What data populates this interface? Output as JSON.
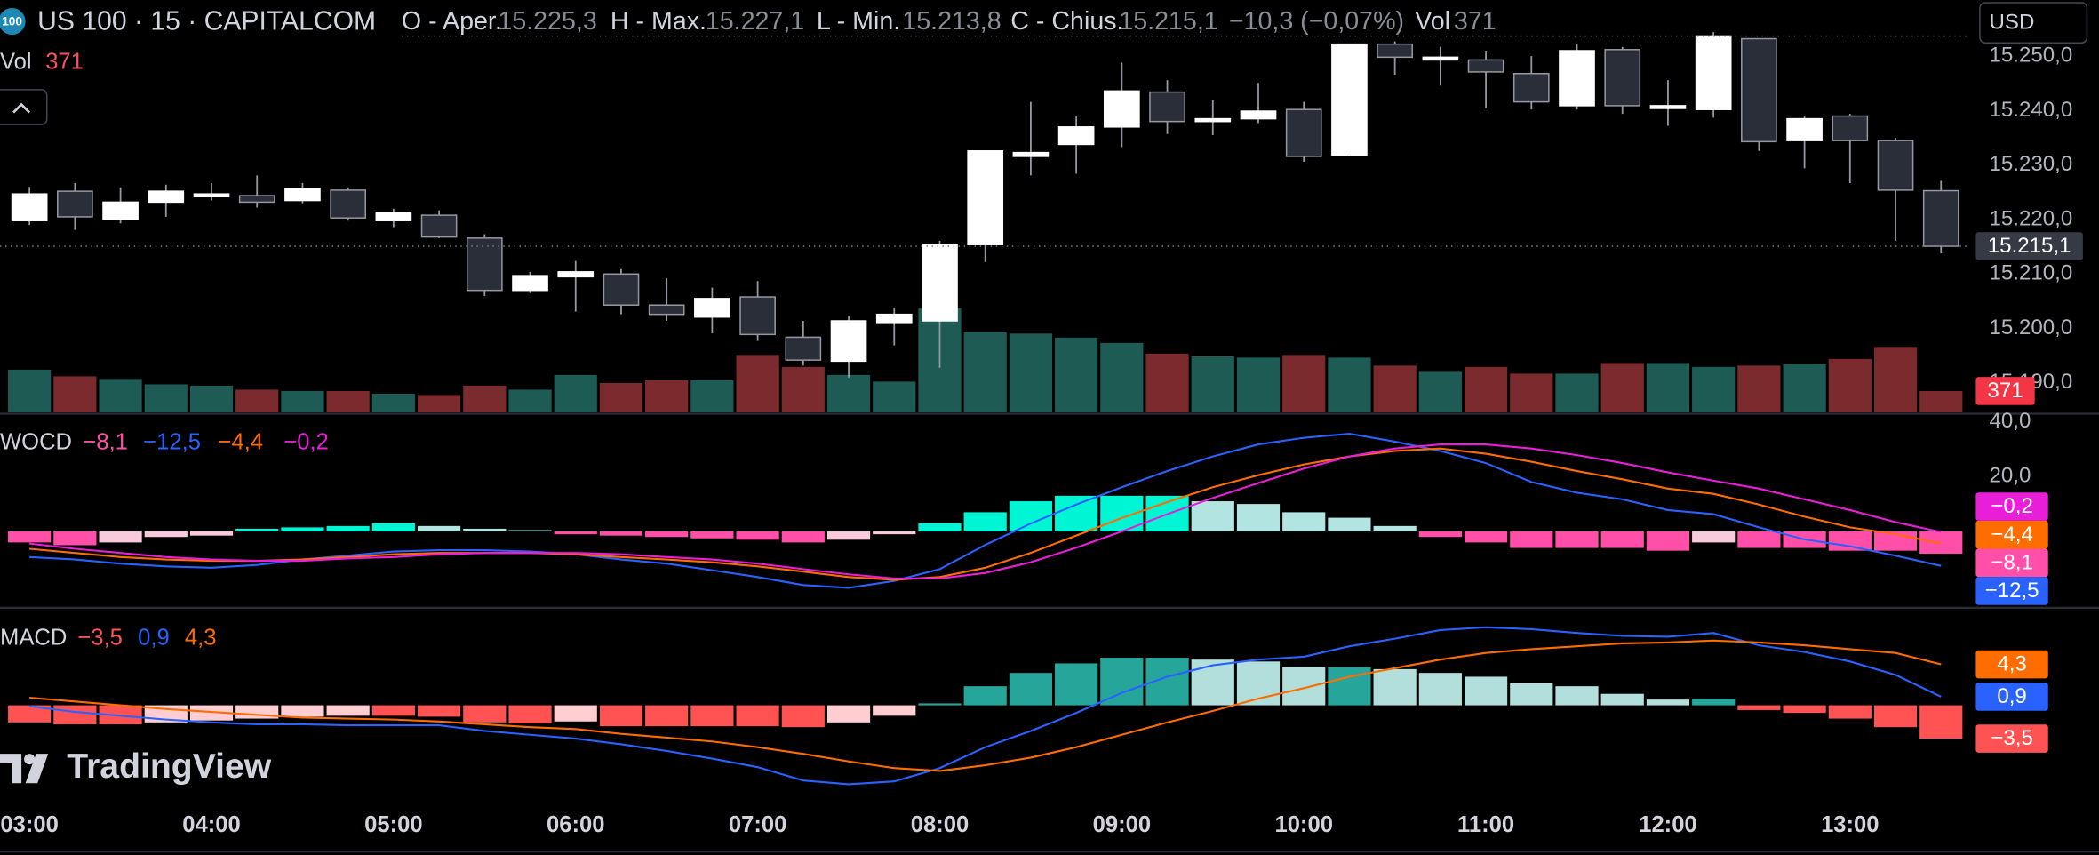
{
  "chart_data": [
    {
      "type": "candlestick",
      "title": "US 100 · 15 · CAPITALCOM",
      "symbol_badge": "100",
      "currency": "USD",
      "legend": {
        "open": "O - Aper.",
        "high": "H - Max.",
        "low": "L - Min.",
        "close": "C - Chius.",
        "change": "−10,3 (−0,07%)",
        "volume": "Vol"
      },
      "last_labels": {
        "open": "15.225,3",
        "high": "15.227,1",
        "low": "15.213,8",
        "close": "15.215,1"
      },
      "categories": [
        "03:00",
        null,
        null,
        null,
        "04:00",
        null,
        null,
        null,
        "05:00",
        null,
        null,
        null,
        "06:00",
        null,
        null,
        null,
        "07:00",
        null,
        null,
        null,
        "08:00",
        null,
        null,
        null,
        "09:00",
        null,
        null,
        null,
        "10:00",
        null,
        null,
        null,
        "11:00",
        null,
        null,
        null,
        "12:00",
        null,
        null,
        null,
        "13:00",
        null,
        null
      ],
      "open": [
        15219.8,
        15225.2,
        15220.0,
        15223.2,
        15224.2,
        15224.4,
        15223.5,
        15225.4,
        15219.8,
        15220.8,
        15216.6,
        15207.0,
        15209.5,
        15210.0,
        15204.3,
        15202.1,
        15205.8,
        15198.4,
        15194.0,
        15201.1,
        15201.4,
        15215.4,
        15231.6,
        15233.8,
        15237.0,
        15243.4,
        15238.0,
        15238.5,
        15240.2,
        15231.8,
        15252.2,
        15249.3,
        15249.3,
        15246.8,
        15240.9,
        15251.2,
        15240.4,
        15240.2,
        15253.2,
        15234.5,
        15239.0,
        15234.5,
        15225.3
      ],
      "high": [
        15226.0,
        15226.7,
        15225.9,
        15226.4,
        15226.7,
        15228.1,
        15226.7,
        15225.9,
        15222.0,
        15221.7,
        15217.3,
        15210.4,
        15212.4,
        15210.9,
        15209.2,
        15207.5,
        15208.7,
        15201.4,
        15202.3,
        15203.8,
        15216.1,
        15232.6,
        15241.6,
        15238.9,
        15248.8,
        15245.6,
        15241.9,
        15245.1,
        15241.6,
        15252.2,
        15252.7,
        15251.7,
        15251.0,
        15250.0,
        15252.2,
        15251.7,
        15245.6,
        15254.4,
        15253.2,
        15238.9,
        15239.4,
        15235.0,
        15227.1
      ],
      "low": [
        15219.0,
        15218.1,
        15219.3,
        15220.5,
        15223.5,
        15222.2,
        15223.0,
        15219.8,
        15218.6,
        15216.6,
        15206.0,
        15206.5,
        15203.1,
        15202.6,
        15201.4,
        15199.1,
        15197.7,
        15193.2,
        15191.0,
        15196.9,
        15192.8,
        15212.2,
        15228.1,
        15228.4,
        15233.3,
        15235.7,
        15235.5,
        15237.7,
        15230.6,
        15231.6,
        15246.6,
        15244.6,
        15240.4,
        15240.2,
        15240.2,
        15239.4,
        15237.2,
        15238.7,
        15232.6,
        15229.4,
        15226.7,
        15216.1,
        15213.8
      ],
      "close": [
        15224.7,
        15220.5,
        15223.2,
        15225.2,
        15224.7,
        15223.2,
        15225.7,
        15220.3,
        15221.3,
        15216.8,
        15207.0,
        15209.7,
        15210.4,
        15204.3,
        15202.6,
        15205.5,
        15198.9,
        15194.2,
        15201.4,
        15202.6,
        15215.4,
        15232.6,
        15232.3,
        15237.0,
        15243.6,
        15238.0,
        15238.5,
        15239.9,
        15231.6,
        15252.2,
        15249.8,
        15249.8,
        15247.1,
        15241.6,
        15251.0,
        15240.9,
        15240.9,
        15253.7,
        15234.3,
        15238.5,
        15234.5,
        15225.4,
        15215.1
      ],
      "volume": [
        742,
        626,
        580,
        487,
        464,
        394,
        371,
        371,
        325,
        302,
        464,
        394,
        650,
        510,
        557,
        557,
        998,
        789,
        650,
        534,
        1810,
        1392,
        1369,
        1299,
        1206,
        1021,
        974,
        951,
        998,
        951,
        812,
        719,
        789,
        673,
        673,
        858,
        858,
        789,
        812,
        835,
        928,
        1137,
        371
      ],
      "vlim": [
        0,
        2000
      ],
      "up_color": "#ffffff",
      "down_color": "#2a2e39",
      "volume_up_color": "#1e5b55",
      "volume_down_color": "#7b2b2d",
      "ylim": [
        15184.6,
        15260.3
      ],
      "yticks": [
        {
          "value": 15250,
          "label": "15.250,0"
        },
        {
          "value": 15240,
          "label": "15.240,0"
        },
        {
          "value": 15230,
          "label": "15.230,0"
        },
        {
          "value": 15220,
          "label": "15.220,0"
        },
        {
          "value": 15210,
          "label": "15.210,0"
        },
        {
          "value": 15200,
          "label": "15.200,0"
        },
        {
          "value": 15190,
          "label": "15.190,0"
        }
      ],
      "branding": "TradingView"
    },
    {
      "type": "indicator",
      "title": "WOCD",
      "ylim": [
        -27.3,
        42.4
      ],
      "yticks": [
        {
          "value": 40,
          "label": "40,0"
        },
        {
          "value": 20,
          "label": "20,0"
        }
      ],
      "series": [
        {
          "kind": "histogram",
          "colors": [
            "#00f5d4",
            "#b2e5e2",
            "#ff4fa8",
            "#f9c9dc"
          ],
          "values": [
            -4,
            -5,
            -4,
            -2,
            -1.5,
            1,
            1.5,
            2,
            3,
            2,
            1,
            0.5,
            -1,
            -1.5,
            -2,
            -2.5,
            -3,
            -4,
            -3,
            -1,
            3,
            7,
            11,
            13,
            13,
            13,
            11,
            10,
            7,
            5,
            2,
            -2,
            -4,
            -6,
            -6,
            -6,
            -7,
            -4,
            -6,
            -6,
            -7,
            -7,
            -8.1
          ],
          "value_labels": [
            null,
            null,
            null,
            null,
            null,
            null,
            null,
            null,
            null,
            null,
            null,
            null,
            null,
            null,
            null,
            null,
            null,
            null,
            null,
            null,
            null,
            null,
            null,
            null,
            null,
            null,
            null,
            null,
            null,
            null,
            null,
            null,
            null,
            null,
            null,
            null,
            null,
            null,
            null,
            null,
            null,
            null,
            "−8,1"
          ]
        },
        {
          "kind": "line",
          "color": "#2962ff",
          "values": [
            -9.3,
            -10.2,
            -11.7,
            -12.7,
            -13.2,
            -12.2,
            -10.2,
            -8.8,
            -7.3,
            -6.8,
            -6.8,
            -7.3,
            -8.3,
            -10.2,
            -11.7,
            -14.1,
            -16.6,
            -19.5,
            -20.5,
            -18.0,
            -13.7,
            -4.9,
            2.9,
            9.8,
            16.1,
            22.0,
            27.3,
            31.7,
            34.1,
            35.6,
            32.7,
            29.3,
            24.9,
            18.0,
            14.1,
            11.7,
            7.8,
            6.3,
            1.5,
            -2.9,
            -5.4,
            -8.8,
            -12.5
          ],
          "value_labels": [
            null,
            null,
            null,
            null,
            null,
            null,
            null,
            null,
            null,
            null,
            null,
            null,
            null,
            null,
            null,
            null,
            null,
            null,
            null,
            null,
            null,
            null,
            null,
            null,
            null,
            null,
            null,
            null,
            null,
            null,
            null,
            null,
            null,
            null,
            null,
            null,
            null,
            null,
            null,
            null,
            null,
            null,
            "−12,5"
          ]
        },
        {
          "kind": "line",
          "color": "#ff6d00",
          "values": [
            -6.3,
            -7.8,
            -9.3,
            -10.2,
            -10.7,
            -10.7,
            -10.2,
            -9.3,
            -8.3,
            -7.8,
            -7.8,
            -7.8,
            -8.3,
            -9.3,
            -10.2,
            -11.2,
            -12.7,
            -14.6,
            -16.6,
            -17.6,
            -16.6,
            -13.2,
            -7.8,
            -1.5,
            4.9,
            10.7,
            16.1,
            20.5,
            24.4,
            27.3,
            29.3,
            30.2,
            28.3,
            25.4,
            22.0,
            19.0,
            15.6,
            13.7,
            9.8,
            5.4,
            1.5,
            -1.0,
            -4.4
          ],
          "value_labels": [
            null,
            null,
            null,
            null,
            null,
            null,
            null,
            null,
            null,
            null,
            null,
            null,
            null,
            null,
            null,
            null,
            null,
            null,
            null,
            null,
            null,
            null,
            null,
            null,
            null,
            null,
            null,
            null,
            null,
            null,
            null,
            null,
            null,
            null,
            null,
            null,
            null,
            null,
            null,
            null,
            null,
            null,
            "−4,4"
          ]
        },
        {
          "kind": "line",
          "color": "#e91ed8",
          "values": [
            -4.4,
            -6.3,
            -7.8,
            -9.3,
            -10.2,
            -10.7,
            -10.7,
            -9.8,
            -9.3,
            -8.3,
            -7.8,
            -7.8,
            -7.8,
            -8.3,
            -9.3,
            -10.2,
            -11.7,
            -13.7,
            -15.6,
            -17.1,
            -17.1,
            -15.1,
            -11.2,
            -5.9,
            0,
            6.3,
            12.2,
            17.6,
            22.9,
            27.3,
            30.2,
            31.7,
            31.7,
            30.2,
            27.8,
            24.9,
            21.5,
            18.5,
            15.6,
            11.7,
            7.8,
            3.4,
            -0.2
          ],
          "value_labels": [
            null,
            null,
            null,
            null,
            null,
            null,
            null,
            null,
            null,
            null,
            null,
            null,
            null,
            null,
            null,
            null,
            null,
            null,
            null,
            null,
            null,
            null,
            null,
            null,
            null,
            null,
            null,
            null,
            null,
            null,
            null,
            null,
            null,
            null,
            null,
            null,
            null,
            null,
            null,
            null,
            null,
            null,
            "−0,2"
          ]
        }
      ]
    },
    {
      "type": "indicator",
      "title": "MACD",
      "ylim": [
        -10.3,
        10.1
      ],
      "series": [
        {
          "kind": "histogram",
          "colors": [
            "#26a69a",
            "#b2dfdb",
            "#ff5252",
            "#ffcdd2"
          ],
          "values": [
            -1.8,
            -2.0,
            -2.0,
            -1.8,
            -1.6,
            -1.4,
            -1.2,
            -1.1,
            -1.1,
            -1.2,
            -1.8,
            -1.9,
            -1.7,
            -2.2,
            -2.2,
            -2.2,
            -2.2,
            -2.3,
            -1.8,
            -1.1,
            0.2,
            2.0,
            3.4,
            4.4,
            5.0,
            5.0,
            4.8,
            4.6,
            4.0,
            4.0,
            3.8,
            3.4,
            3.0,
            2.3,
            2.0,
            1.2,
            0.6,
            0.7,
            -0.5,
            -0.8,
            -1.4,
            -2.3,
            -3.5
          ],
          "value_labels": [
            null,
            null,
            null,
            null,
            null,
            null,
            null,
            null,
            null,
            null,
            null,
            null,
            null,
            null,
            null,
            null,
            null,
            null,
            null,
            null,
            null,
            null,
            null,
            null,
            null,
            null,
            null,
            null,
            null,
            null,
            null,
            null,
            null,
            null,
            null,
            null,
            null,
            null,
            null,
            null,
            null,
            null,
            "−3,5"
          ]
        },
        {
          "kind": "line",
          "color": "#2962ff",
          "values": [
            -0.1,
            -0.7,
            -1.1,
            -1.5,
            -1.8,
            -2.0,
            -2.0,
            -2.1,
            -2.1,
            -2.1,
            -2.7,
            -3.1,
            -3.5,
            -4.1,
            -4.8,
            -5.6,
            -6.5,
            -7.9,
            -8.3,
            -8.0,
            -6.6,
            -4.4,
            -2.7,
            -0.8,
            1.3,
            3.0,
            4.2,
            4.8,
            5.1,
            6.2,
            7.0,
            7.9,
            8.2,
            8.0,
            7.6,
            7.3,
            7.2,
            7.6,
            6.3,
            5.6,
            4.6,
            3.2,
            0.9
          ],
          "value_labels": [
            null,
            null,
            null,
            null,
            null,
            null,
            null,
            null,
            null,
            null,
            null,
            null,
            null,
            null,
            null,
            null,
            null,
            null,
            null,
            null,
            null,
            null,
            null,
            null,
            null,
            null,
            null,
            null,
            null,
            null,
            null,
            null,
            null,
            null,
            null,
            null,
            null,
            null,
            null,
            null,
            null,
            null,
            "0,9"
          ]
        },
        {
          "kind": "line",
          "color": "#ff6d00",
          "values": [
            0.8,
            0.4,
            0,
            -0.4,
            -0.7,
            -1.0,
            -1.3,
            -1.4,
            -1.5,
            -1.7,
            -2.0,
            -2.3,
            -2.5,
            -3.0,
            -3.4,
            -3.8,
            -4.4,
            -5.1,
            -5.9,
            -6.6,
            -6.9,
            -6.3,
            -5.5,
            -4.4,
            -3.1,
            -1.8,
            -0.6,
            0.7,
            1.8,
            3.0,
            3.9,
            4.8,
            5.5,
            5.9,
            6.2,
            6.5,
            6.6,
            6.8,
            6.6,
            6.3,
            5.9,
            5.5,
            4.3
          ],
          "value_labels": [
            null,
            null,
            null,
            null,
            null,
            null,
            null,
            null,
            null,
            null,
            null,
            null,
            null,
            null,
            null,
            null,
            null,
            null,
            null,
            null,
            null,
            null,
            null,
            null,
            null,
            null,
            null,
            null,
            null,
            null,
            null,
            null,
            null,
            null,
            null,
            null,
            null,
            null,
            null,
            null,
            null,
            null,
            "4,3"
          ]
        }
      ]
    }
  ]
}
